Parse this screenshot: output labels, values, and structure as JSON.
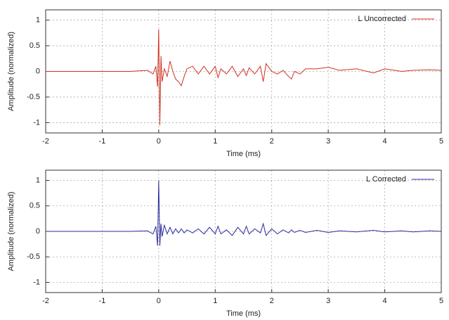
{
  "chart_data": [
    {
      "type": "line",
      "x_label": "Time (ms)",
      "y_label": "Amplitude (normalized)",
      "x": [
        -2,
        -1,
        -0.5,
        -0.2,
        -0.1,
        -0.05,
        -0.02,
        0,
        0.02,
        0.04,
        0.06,
        0.1,
        0.15,
        0.2,
        0.25,
        0.3,
        0.35,
        0.4,
        0.45,
        0.5,
        0.6,
        0.7,
        0.8,
        0.9,
        1.0,
        1.05,
        1.1,
        1.2,
        1.3,
        1.4,
        1.5,
        1.55,
        1.6,
        1.7,
        1.8,
        1.85,
        1.9,
        2.0,
        2.1,
        2.2,
        2.3,
        2.35,
        2.4,
        2.5,
        2.6,
        2.8,
        3.0,
        3.2,
        3.5,
        3.8,
        4.0,
        4.3,
        4.5,
        4.8,
        5.0
      ],
      "series": [
        {
          "name": "L Uncorrected",
          "color": "#d03020",
          "values": [
            0,
            0,
            0,
            0.02,
            -0.05,
            0.1,
            -0.3,
            0.82,
            -1.05,
            0.3,
            -0.2,
            0.05,
            -0.1,
            0.2,
            0,
            -0.15,
            -0.2,
            -0.28,
            -0.1,
            0.05,
            0.1,
            -0.05,
            0.1,
            -0.05,
            0.1,
            -0.12,
            0.05,
            -0.05,
            0.1,
            -0.1,
            0.05,
            -0.08,
            0.07,
            -0.05,
            0.1,
            -0.2,
            0.15,
            0.0,
            -0.05,
            0.02,
            -0.1,
            -0.15,
            0,
            -0.05,
            0.05,
            0.05,
            0.08,
            0.02,
            0.05,
            -0.03,
            0.05,
            0,
            0.02,
            0.03,
            0.02
          ]
        }
      ],
      "xlim": [
        -2,
        5
      ],
      "ylim": [
        -1.2,
        1.2
      ],
      "xticks": [
        -2,
        -1,
        0,
        1,
        2,
        3,
        4,
        5
      ],
      "yticks": [
        -1,
        -0.5,
        0,
        0.5,
        1
      ],
      "grid": true,
      "legend": "upper right"
    },
    {
      "type": "line",
      "x_label": "Time (ms)",
      "y_label": "Amplitude (normalized)",
      "x": [
        -2,
        -1,
        -0.5,
        -0.2,
        -0.1,
        -0.05,
        -0.02,
        0,
        0.02,
        0.04,
        0.06,
        0.1,
        0.15,
        0.2,
        0.25,
        0.3,
        0.35,
        0.4,
        0.45,
        0.5,
        0.6,
        0.7,
        0.8,
        0.9,
        1.0,
        1.05,
        1.1,
        1.2,
        1.3,
        1.4,
        1.5,
        1.55,
        1.6,
        1.7,
        1.8,
        1.85,
        1.9,
        2.0,
        2.1,
        2.2,
        2.3,
        2.35,
        2.4,
        2.5,
        2.6,
        2.8,
        3.0,
        3.2,
        3.5,
        3.8,
        4.0,
        4.3,
        4.5,
        4.8,
        5.0
      ],
      "series": [
        {
          "name": "L Corrected",
          "color": "#2a2aa0",
          "values": [
            0,
            0,
            0,
            0.01,
            -0.05,
            0.1,
            -0.28,
            1.0,
            -0.28,
            0.15,
            -0.1,
            0.12,
            -0.05,
            0.08,
            -0.05,
            0.05,
            -0.03,
            0.05,
            -0.03,
            0.03,
            -0.03,
            0.05,
            -0.05,
            0.08,
            -0.05,
            0.1,
            -0.05,
            0.03,
            -0.08,
            0.08,
            -0.05,
            0.1,
            -0.05,
            0.05,
            -0.03,
            0.15,
            -0.08,
            0.05,
            -0.05,
            0.03,
            -0.03,
            0.03,
            -0.02,
            0.02,
            -0.02,
            0.02,
            -0.02,
            0.01,
            -0.01,
            0.02,
            -0.01,
            0.01,
            -0.01,
            0.01,
            0
          ]
        }
      ],
      "xlim": [
        -2,
        5
      ],
      "ylim": [
        -1.2,
        1.2
      ],
      "xticks": [
        -2,
        -1,
        0,
        1,
        2,
        3,
        4,
        5
      ],
      "yticks": [
        -1,
        -0.5,
        0,
        0.5,
        1
      ],
      "grid": true,
      "legend": "upper right"
    }
  ]
}
